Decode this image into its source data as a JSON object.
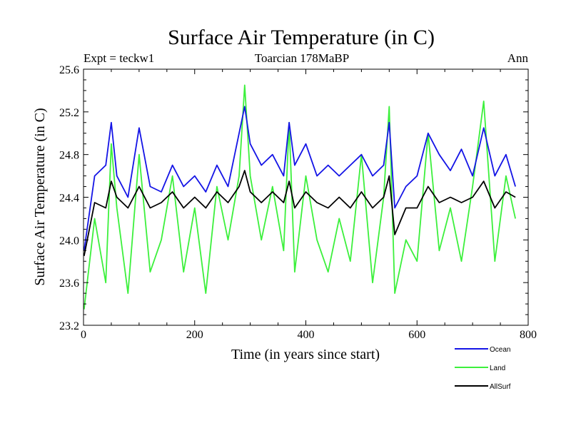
{
  "chart_data": {
    "type": "line",
    "title": "Surface Air Temperature (in C)",
    "subtitle_left": "Expt = teckw1",
    "subtitle_center": "Toarcian 178MaBP",
    "subtitle_right": "Ann",
    "xlabel": "Time (in years since start)",
    "ylabel": "Surface Air Temperature (in C)",
    "xlim": [
      0,
      800
    ],
    "ylim": [
      23.2,
      25.6
    ],
    "xticks": [
      0,
      200,
      400,
      600,
      800
    ],
    "yticks": [
      23.2,
      23.6,
      24.0,
      24.4,
      24.8,
      25.2,
      25.6
    ],
    "ytick_labels": [
      "23.2",
      "23.6",
      "24.0",
      "24.4",
      "24.8",
      "25.2",
      "25.6"
    ],
    "x_range": [
      1,
      777
    ],
    "series": [
      {
        "name": "Ocean",
        "color": "#1414e6",
        "x": [
          1,
          20,
          40,
          50,
          60,
          80,
          100,
          120,
          140,
          160,
          180,
          200,
          220,
          240,
          260,
          280,
          290,
          300,
          320,
          340,
          360,
          370,
          380,
          400,
          420,
          440,
          460,
          480,
          500,
          520,
          540,
          550,
          560,
          580,
          600,
          620,
          640,
          660,
          680,
          700,
          720,
          740,
          760,
          777
        ],
        "values": [
          23.9,
          24.6,
          24.7,
          25.1,
          24.6,
          24.4,
          25.05,
          24.5,
          24.45,
          24.7,
          24.5,
          24.6,
          24.45,
          24.7,
          24.5,
          25.0,
          25.25,
          24.9,
          24.7,
          24.8,
          24.6,
          25.1,
          24.7,
          24.9,
          24.6,
          24.7,
          24.6,
          24.7,
          24.8,
          24.6,
          24.7,
          25.1,
          24.3,
          24.5,
          24.6,
          25.0,
          24.8,
          24.65,
          24.85,
          24.6,
          25.05,
          24.6,
          24.8,
          24.5
        ]
      },
      {
        "name": "Land",
        "color": "#3cf03c",
        "x": [
          1,
          20,
          40,
          50,
          60,
          80,
          100,
          120,
          140,
          160,
          180,
          200,
          220,
          240,
          260,
          280,
          290,
          300,
          320,
          340,
          360,
          370,
          380,
          400,
          420,
          440,
          460,
          480,
          500,
          520,
          540,
          550,
          560,
          580,
          600,
          620,
          640,
          660,
          680,
          700,
          720,
          740,
          760,
          777
        ],
        "values": [
          23.35,
          24.2,
          23.6,
          24.9,
          24.3,
          23.5,
          24.8,
          23.7,
          24.0,
          24.6,
          23.7,
          24.3,
          23.5,
          24.5,
          24.0,
          24.6,
          25.45,
          24.6,
          24.0,
          24.5,
          23.9,
          25.1,
          23.7,
          24.6,
          24.0,
          23.7,
          24.2,
          23.8,
          24.8,
          23.6,
          24.4,
          25.25,
          23.5,
          24.0,
          23.8,
          25.0,
          23.9,
          24.3,
          23.8,
          24.5,
          25.3,
          23.8,
          24.6,
          24.2
        ]
      },
      {
        "name": "AllSurf",
        "color": "#000000",
        "x": [
          1,
          20,
          40,
          50,
          60,
          80,
          100,
          120,
          140,
          160,
          180,
          200,
          220,
          240,
          260,
          280,
          290,
          300,
          320,
          340,
          360,
          370,
          380,
          400,
          420,
          440,
          460,
          480,
          500,
          520,
          540,
          550,
          560,
          580,
          600,
          620,
          640,
          660,
          680,
          700,
          720,
          740,
          760,
          777
        ],
        "values": [
          23.85,
          24.35,
          24.3,
          24.55,
          24.4,
          24.3,
          24.5,
          24.3,
          24.35,
          24.45,
          24.3,
          24.4,
          24.3,
          24.45,
          24.35,
          24.5,
          24.65,
          24.45,
          24.35,
          24.45,
          24.35,
          24.55,
          24.3,
          24.45,
          24.35,
          24.3,
          24.4,
          24.3,
          24.45,
          24.3,
          24.4,
          24.6,
          24.05,
          24.3,
          24.3,
          24.5,
          24.35,
          24.4,
          24.35,
          24.4,
          24.55,
          24.3,
          24.45,
          24.4
        ]
      }
    ]
  }
}
